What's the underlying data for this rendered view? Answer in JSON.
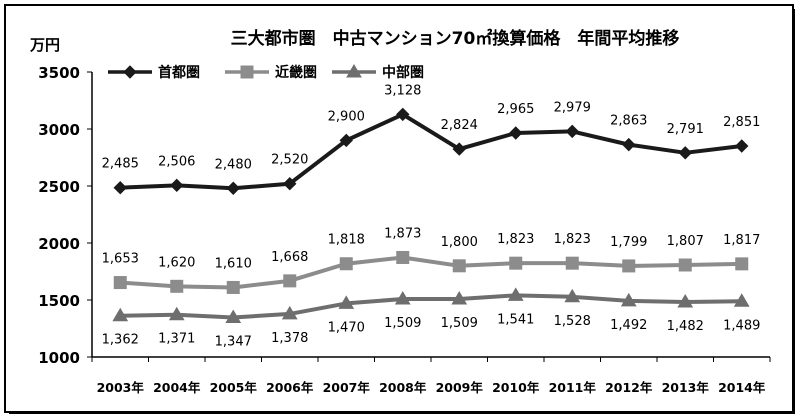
{
  "chart_data": {
    "type": "line",
    "title": "三大都市圏　中古マンション70㎡換算価格　年間平均推移",
    "ylabel": "万円",
    "xlabel": "",
    "ylim": [
      1000,
      3500
    ],
    "yticks": [
      1000,
      1500,
      2000,
      2500,
      3000,
      3500
    ],
    "grid": false,
    "legend": "top-left",
    "categories": [
      "2003年",
      "2004年",
      "2005年",
      "2006年",
      "2007年",
      "2008年",
      "2009年",
      "2010年",
      "2011年",
      "2012年",
      "2013年",
      "2014年"
    ],
    "series": [
      {
        "name": "首都圏",
        "color": "#1a1a1a",
        "marker": "diamond",
        "values": [
          2485,
          2506,
          2480,
          2520,
          2900,
          3128,
          2824,
          2965,
          2979,
          2863,
          2791,
          2851
        ],
        "labels": [
          "2,485",
          "2,506",
          "2,480",
          "2,520",
          "2,900",
          "3,128",
          "2,824",
          "2,965",
          "2,979",
          "2,863",
          "2,791",
          "2,851"
        ]
      },
      {
        "name": "近畿圏",
        "color": "#8c8c8c",
        "marker": "square",
        "values": [
          1653,
          1620,
          1610,
          1668,
          1818,
          1873,
          1800,
          1823,
          1823,
          1799,
          1807,
          1817
        ],
        "labels": [
          "1,653",
          "1,620",
          "1,610",
          "1,668",
          "1,818",
          "1,873",
          "1,800",
          "1,823",
          "1,823",
          "1,799",
          "1,807",
          "1,817"
        ]
      },
      {
        "name": "中部圏",
        "color": "#6e6e6e",
        "marker": "triangle",
        "values": [
          1362,
          1371,
          1347,
          1378,
          1470,
          1509,
          1509,
          1541,
          1528,
          1492,
          1482,
          1489
        ],
        "labels": [
          "1,362",
          "1,371",
          "1,347",
          "1,378",
          "1,470",
          "1,509",
          "1,509",
          "1,541",
          "1,528",
          "1,492",
          "1,482",
          "1,489"
        ]
      }
    ]
  }
}
